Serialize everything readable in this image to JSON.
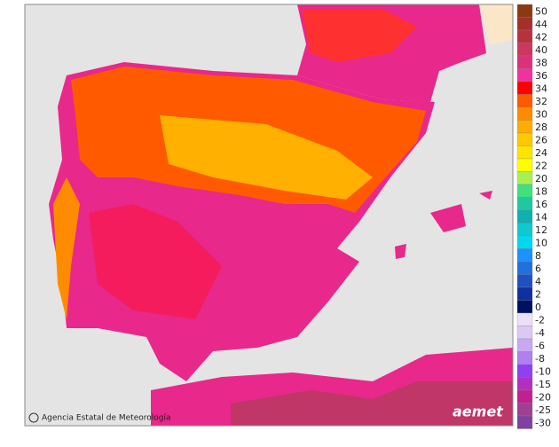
{
  "legend": [
    {
      "label": "50",
      "color": "#8b3a0f"
    },
    {
      "label": "44",
      "color": "#a3302a"
    },
    {
      "label": "42",
      "color": "#b8323e"
    },
    {
      "label": "40",
      "color": "#cc3760"
    },
    {
      "label": "38",
      "color": "#dc307c"
    },
    {
      "label": "36",
      "color": "#f032a0"
    },
    {
      "label": "34",
      "color": "#ff0000"
    },
    {
      "label": "32",
      "color": "#ff5a00"
    },
    {
      "label": "30",
      "color": "#ff8c00"
    },
    {
      "label": "28",
      "color": "#ffac00"
    },
    {
      "label": "26",
      "color": "#ffc800"
    },
    {
      "label": "24",
      "color": "#ffe400"
    },
    {
      "label": "22",
      "color": "#ffff00"
    },
    {
      "label": "20",
      "color": "#a8f050"
    },
    {
      "label": "18",
      "color": "#40e080"
    },
    {
      "label": "16",
      "color": "#20c8a0"
    },
    {
      "label": "14",
      "color": "#10b0b0"
    },
    {
      "label": "12",
      "color": "#10c8d0"
    },
    {
      "label": "10",
      "color": "#00d8f0"
    },
    {
      "label": "8",
      "color": "#1e90ff"
    },
    {
      "label": "6",
      "color": "#2070e0"
    },
    {
      "label": "4",
      "color": "#2050c0"
    },
    {
      "label": "2",
      "color": "#1030a0"
    },
    {
      "label": "0",
      "color": "#001060"
    },
    {
      "label": "-2",
      "color": "#ece0f8"
    },
    {
      "label": "-4",
      "color": "#dcc8f4"
    },
    {
      "label": "-6",
      "color": "#c8a8f0"
    },
    {
      "label": "-8",
      "color": "#b080f0"
    },
    {
      "label": "-10",
      "color": "#9040f0"
    },
    {
      "label": "-15",
      "color": "#b030c0"
    },
    {
      "label": "-20",
      "color": "#c02090"
    },
    {
      "label": "-25",
      "color": "#a04090"
    },
    {
      "label": "-30",
      "color": "#8040a0"
    }
  ],
  "attribution": "Agencia Estatal de Meteorología",
  "logo": "aemet"
}
